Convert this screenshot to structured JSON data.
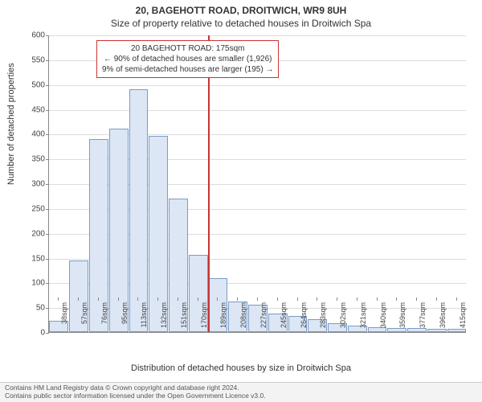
{
  "title_line1": "20, BAGEHOTT ROAD, DROITWICH, WR9 8UH",
  "title_line2": "Size of property relative to detached houses in Droitwich Spa",
  "chart": {
    "type": "histogram",
    "y_axis_label": "Number of detached properties",
    "x_axis_label": "Distribution of detached houses by size in Droitwich Spa",
    "ylim": [
      0,
      600
    ],
    "ytick_step": 50,
    "x_categories": [
      "38sqm",
      "57sqm",
      "76sqm",
      "95sqm",
      "113sqm",
      "132sqm",
      "151sqm",
      "170sqm",
      "189sqm",
      "208sqm",
      "227sqm",
      "245sqm",
      "264sqm",
      "283sqm",
      "302sqm",
      "321sqm",
      "340sqm",
      "359sqm",
      "377sqm",
      "396sqm",
      "415sqm"
    ],
    "values": [
      23,
      145,
      390,
      410,
      490,
      395,
      270,
      155,
      108,
      62,
      55,
      38,
      32,
      26,
      18,
      13,
      10,
      8,
      8,
      6,
      6
    ],
    "bar_fill": "#dce6f5",
    "bar_border": "#7a9cc6",
    "grid_color": "#dddddd",
    "marker_color": "#cc3333",
    "marker_index_after": 7,
    "annotation": {
      "line1": "20 BAGEHOTT ROAD: 175sqm",
      "line2": "← 90% of detached houses are smaller (1,926)",
      "line3": "9% of semi-detached houses are larger (195) →"
    }
  },
  "footer": {
    "line1": "Contains HM Land Registry data © Crown copyright and database right 2024.",
    "line2": "Contains public sector information licensed under the Open Government Licence v3.0."
  }
}
